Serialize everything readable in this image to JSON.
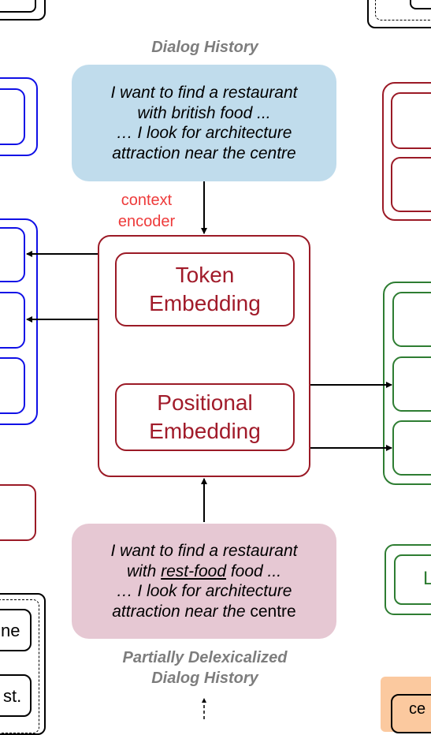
{
  "dialog_history": {
    "title": "Dialog History",
    "lines": [
      "I want to find a restaurant",
      "with british food ...",
      "… I look for architecture",
      "attraction near the centre"
    ]
  },
  "context_encoder": {
    "label_line1": "context",
    "label_line2": "encoder",
    "token_embedding": [
      "Token",
      "Embedding"
    ],
    "positional_embedding": [
      "Positional",
      "Embedding"
    ]
  },
  "delex_history": {
    "line1": "I want to find a restaurant",
    "line2_prefix": "with ",
    "line2_slot": "rest-food",
    "line2_suffix": " food ...",
    "line3": "… I look for architecture",
    "line4_italic": "attraction near the",
    "line4_plain": " centre",
    "title_line1": "Partially Delexicalized",
    "title_line2": "Dialog History"
  },
  "cropped_labels": {
    "left_top": "ne",
    "left_bottom": "st.",
    "right_green": "L",
    "right_orange": "ce"
  },
  "colors": {
    "blue_bubble": "#c0dcec",
    "pink_bubble": "#e6c8d3",
    "dark_red": "#9b1a26",
    "context_red": "#ee3b3b",
    "blue_border": "#1010e6",
    "green_border": "#2e7d32",
    "orange_fill": "#fbc99f"
  }
}
